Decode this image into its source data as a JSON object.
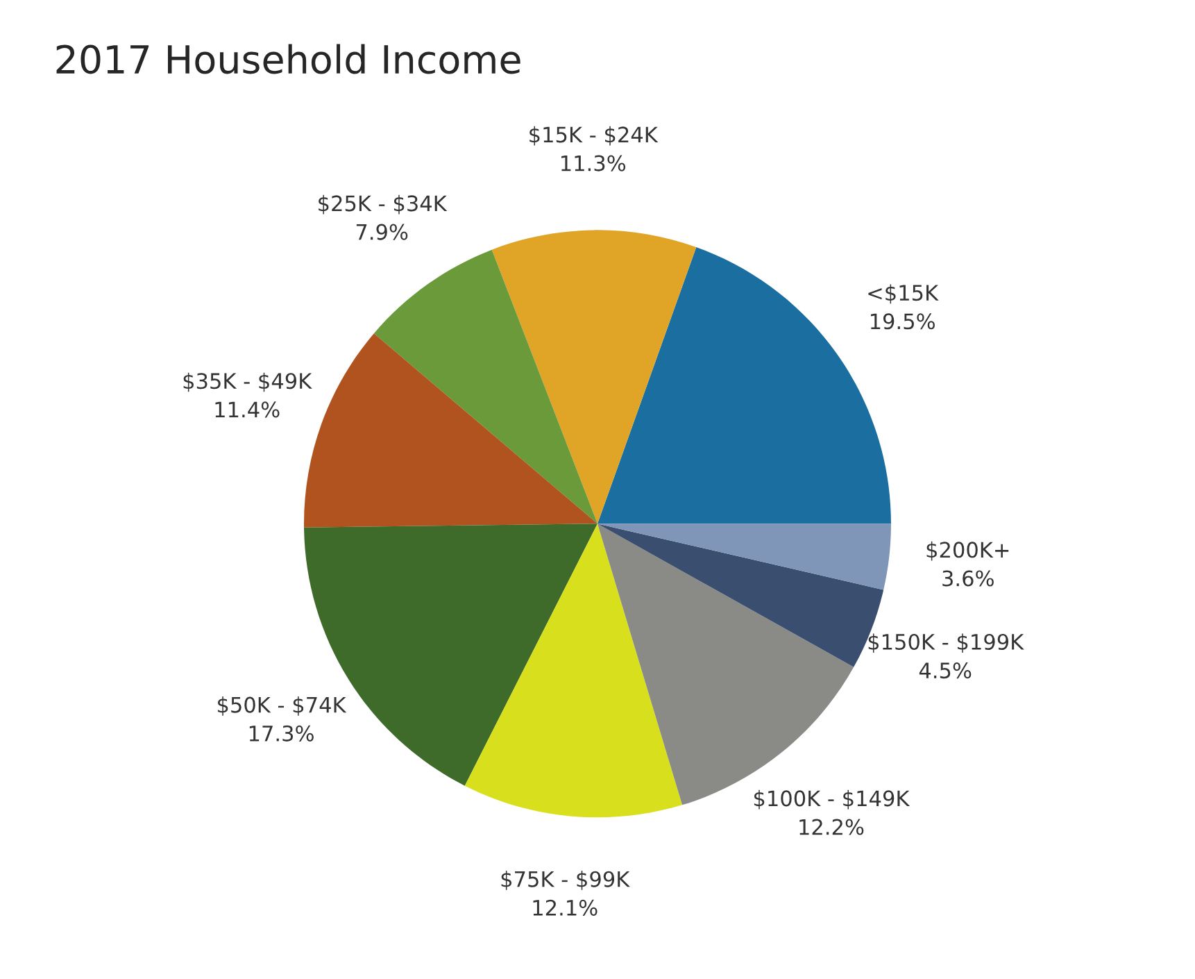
{
  "chart_data": {
    "type": "pie",
    "title": "2017 Household Income",
    "categories": [
      "<$15K",
      "$15K - $24K",
      "$25K - $34K",
      "$35K - $49K",
      "$50K - $74K",
      "$75K - $99K",
      "$100K - $149K",
      "$150K - $199K",
      "$200K+"
    ],
    "values": [
      19.5,
      11.3,
      7.9,
      11.4,
      17.3,
      12.1,
      12.2,
      4.5,
      3.6
    ],
    "value_labels": [
      "19.5%",
      "11.3%",
      "7.9%",
      "11.4%",
      "17.3%",
      "12.1%",
      "12.2%",
      "4.5%",
      "3.6%"
    ],
    "colors": [
      "#1a6fa0",
      "#e0a426",
      "#6a9a3a",
      "#b0531e",
      "#3f6b2a",
      "#d8e01e",
      "#8a8a86",
      "#3a4f70",
      "#7f96b8"
    ],
    "legend": false
  }
}
